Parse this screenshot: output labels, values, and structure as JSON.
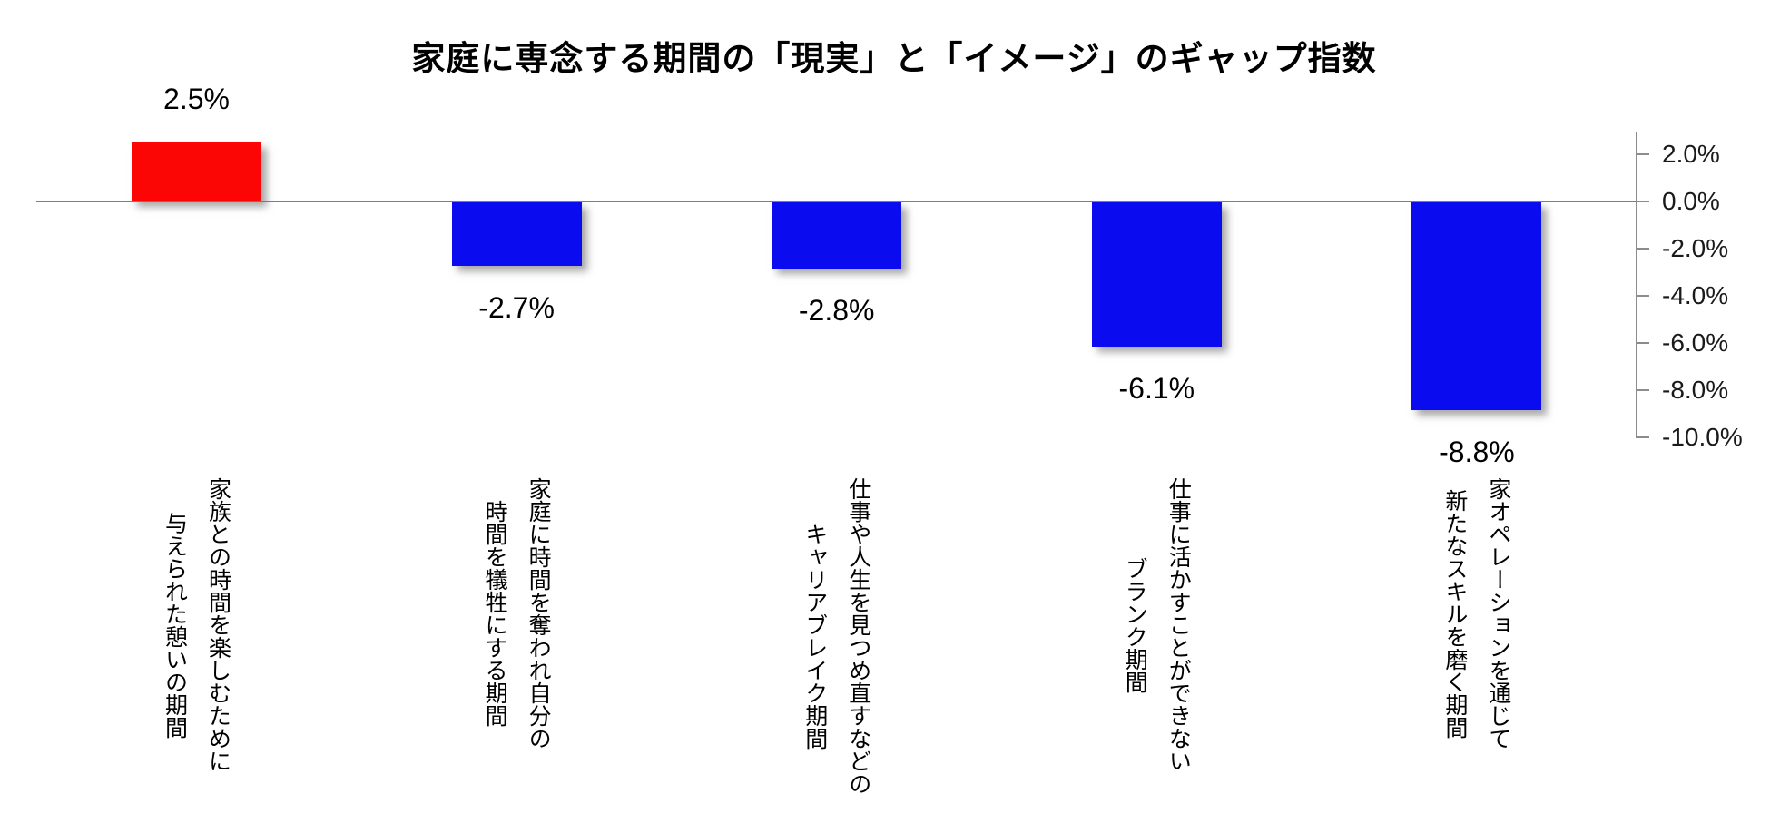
{
  "title": "家庭に専念する期間の「現実」と「イメージ」のギャップ指数",
  "chart_data": {
    "type": "bar",
    "title": "家庭に専念する期間の「現実」と「イメージ」のギャップ指数",
    "categories": [
      "家族との時間を楽しむために与えられた憩いの期間",
      "家庭に時間を奪われ自分の時間を犠牲にする期間",
      "仕事や人生を見つめ直すなどのキャリアブレイク期間",
      "仕事に活かすことができないブランク期間",
      "家オペレーションを通じて新たなスキルを磨く期間"
    ],
    "categories_lines": [
      [
        "家族との時間を楽しむために",
        "与えられた憩いの期間"
      ],
      [
        "家庭に時間を奪われ自分の",
        "時間を犠牲にする期間"
      ],
      [
        "仕事や人生を見つめ直すなどの",
        "キャリアブレイク期間"
      ],
      [
        "仕事に活かすことができない",
        "ブランク期間"
      ],
      [
        "家オペレーションを通じて",
        "新たなスキルを磨く期間"
      ]
    ],
    "values": [
      2.5,
      -2.7,
      -2.8,
      -6.1,
      -8.8
    ],
    "value_labels": [
      "2.5%",
      "-2.7%",
      "-2.8%",
      "-6.1%",
      "-8.8%"
    ],
    "bar_colors": [
      "#fb0505",
      "#0b0bf0",
      "#0b0bf0",
      "#0b0bf0",
      "#0b0bf0"
    ],
    "xlabel": "",
    "ylabel": "",
    "y_axis": {
      "side": "right",
      "ticks": [
        "2.0%",
        "0.0%",
        "-2.0%",
        "-4.0%",
        "-6.0%",
        "-8.0%",
        "-10.0%"
      ],
      "tick_values": [
        2,
        0,
        -2,
        -4,
        -6,
        -8,
        -10
      ],
      "range": [
        -10,
        3
      ]
    },
    "grid": false,
    "legend": false
  }
}
